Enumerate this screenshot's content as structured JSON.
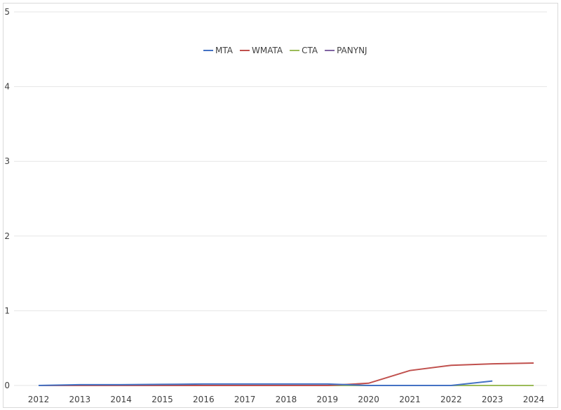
{
  "chart_data": {
    "type": "line",
    "title": "",
    "xlabel": "",
    "ylabel": "",
    "categories": [
      "2012",
      "2013",
      "2014",
      "2015",
      "2016",
      "2017",
      "2018",
      "2019",
      "2020",
      "2021",
      "2022",
      "2023",
      "2024"
    ],
    "ylim": [
      0,
      5
    ],
    "yticks": [
      "0",
      "1",
      "2",
      "3",
      "4",
      "5"
    ],
    "grid": true,
    "legend_position": "top",
    "series": [
      {
        "name": "MTA",
        "color": "#4472c4",
        "values": [
          0,
          0.01,
          0.01,
          0.015,
          0.02,
          0.02,
          0.02,
          0.02,
          0,
          0,
          0,
          0.06,
          null
        ]
      },
      {
        "name": "WMATA",
        "color": "#c0504d",
        "values": [
          0,
          0,
          0,
          0,
          0,
          0,
          0,
          0,
          0.03,
          0.2,
          0.27,
          0.29,
          0.3
        ]
      },
      {
        "name": "CTA",
        "color": "#9bbb59",
        "values": [
          0,
          0,
          0,
          0,
          0,
          0,
          0,
          0,
          0,
          0,
          0,
          0,
          0
        ]
      },
      {
        "name": "PANYNJ",
        "color": "#8064a2",
        "values": [
          0,
          0,
          0,
          0,
          0,
          0,
          0,
          0,
          0,
          0,
          0,
          0,
          0
        ]
      }
    ]
  }
}
